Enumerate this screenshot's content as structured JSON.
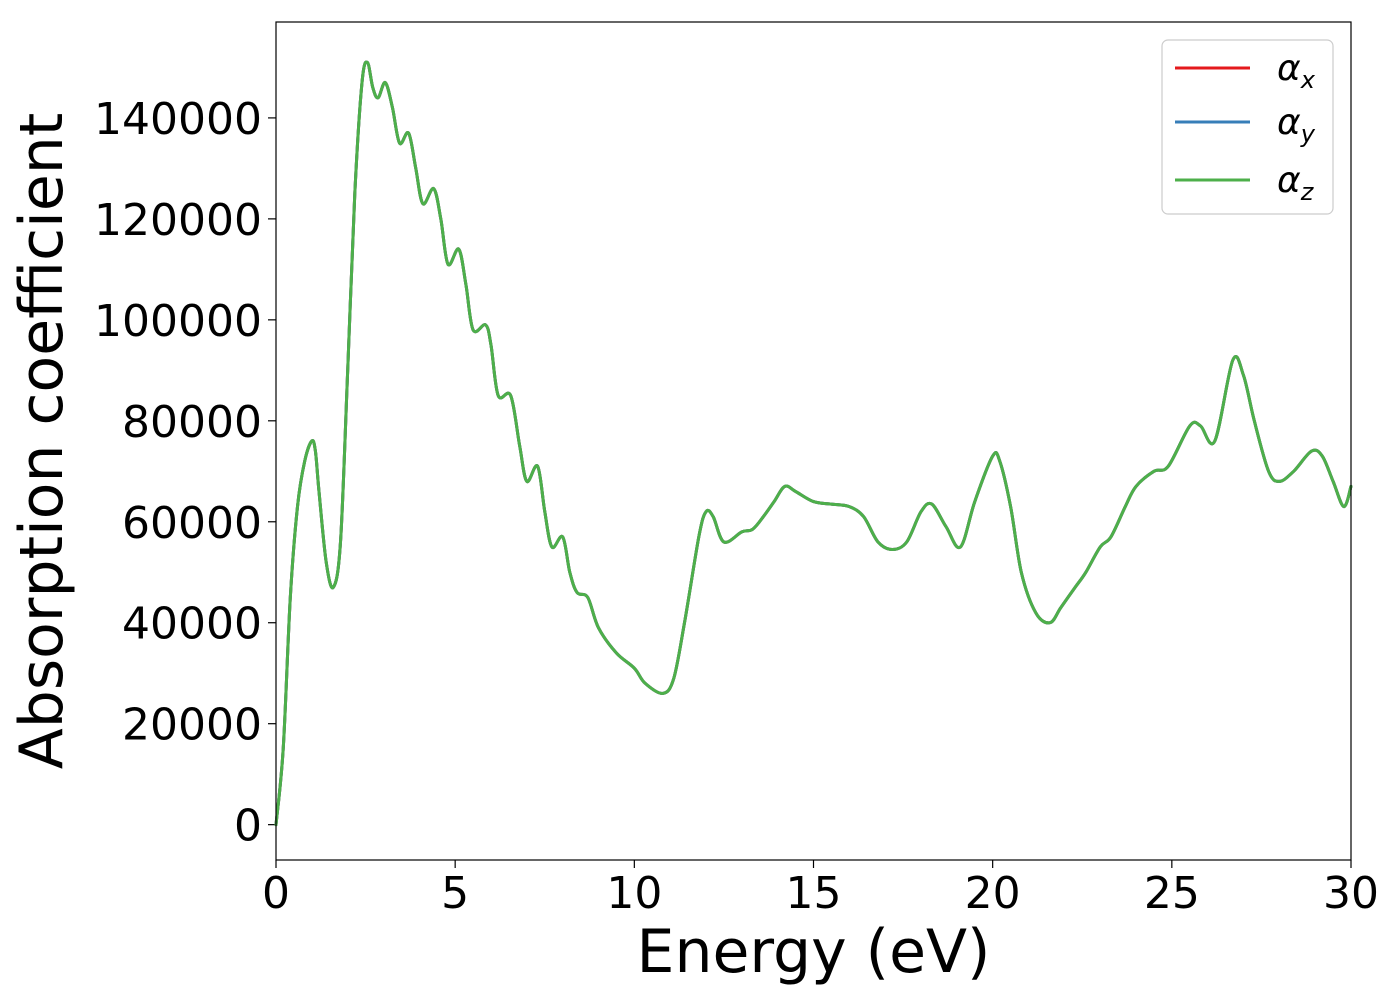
{
  "chart_data": {
    "type": "line",
    "title": "",
    "xlabel": "Energy (eV)",
    "ylabel": "Absorption coefficient",
    "xlim": [
      0,
      30
    ],
    "ylim": [
      -7000,
      159000
    ],
    "x_ticks": [
      0,
      5,
      10,
      15,
      20,
      25,
      30
    ],
    "y_ticks": [
      0,
      20000,
      40000,
      60000,
      80000,
      100000,
      120000,
      140000
    ],
    "grid": false,
    "legend": {
      "position": "top-right",
      "entries": [
        {
          "symbol": "α",
          "sub": "x"
        },
        {
          "symbol": "α",
          "sub": "y"
        },
        {
          "symbol": "α",
          "sub": "z"
        }
      ]
    },
    "series": [
      {
        "name": "αx",
        "color": "#e41a1c",
        "x": [
          0,
          0.2,
          0.4,
          0.6,
          0.8,
          1.0,
          1.1,
          1.2,
          1.4,
          1.6,
          1.8,
          2.0,
          2.2,
          2.4,
          2.55,
          2.7,
          2.85,
          3.05,
          3.25,
          3.45,
          3.7,
          3.9,
          4.1,
          4.4,
          4.6,
          4.8,
          5.1,
          5.3,
          5.5,
          5.85,
          6.0,
          6.2,
          6.55,
          6.8,
          7.0,
          7.3,
          7.5,
          7.7,
          8.0,
          8.2,
          8.4,
          8.7,
          9.0,
          9.5,
          10.0,
          10.3,
          10.8,
          11.1,
          11.4,
          11.8,
          12.0,
          12.2,
          12.5,
          13.0,
          13.3,
          13.6,
          13.9,
          14.2,
          14.5,
          15.0,
          15.5,
          16.0,
          16.4,
          16.8,
          17.2,
          17.6,
          18.0,
          18.3,
          18.7,
          19.1,
          19.5,
          20.0,
          20.2,
          20.5,
          20.8,
          21.2,
          21.6,
          21.9,
          22.3,
          22.6,
          23.0,
          23.3,
          23.7,
          24.0,
          24.5,
          24.9,
          25.5,
          25.8,
          26.2,
          26.7,
          27.0,
          27.3,
          27.7,
          28.0,
          28.4,
          28.9,
          29.2,
          29.5,
          29.8,
          30.0
        ],
        "y": [
          0,
          15000,
          45000,
          63000,
          72000,
          76000,
          74000,
          66000,
          52000,
          47000,
          56000,
          90000,
          125000,
          147000,
          151000,
          146000,
          144000,
          147000,
          142000,
          135000,
          137000,
          130000,
          123000,
          126000,
          120000,
          111000,
          114000,
          107000,
          98000,
          99000,
          95000,
          85000,
          85000,
          75000,
          68000,
          71000,
          62000,
          55000,
          57000,
          50000,
          46000,
          45000,
          39000,
          34000,
          31000,
          28000,
          26000,
          29000,
          40000,
          57000,
          62000,
          61000,
          56000,
          58000,
          58500,
          61000,
          64000,
          67000,
          66000,
          64000,
          63500,
          63000,
          61000,
          56000,
          54500,
          56000,
          62000,
          63500,
          59000,
          55000,
          64000,
          73000,
          72000,
          63000,
          50000,
          42000,
          40000,
          43000,
          47000,
          50000,
          55000,
          57000,
          63000,
          67000,
          70000,
          71000,
          79000,
          79000,
          76000,
          92000,
          89000,
          80000,
          70000,
          68000,
          70000,
          74000,
          73000,
          68000,
          63000,
          67000
        ]
      },
      {
        "name": "αy",
        "color": "#377eb8",
        "x": [
          0,
          0.2,
          0.4,
          0.6,
          0.8,
          1.0,
          1.1,
          1.2,
          1.4,
          1.6,
          1.8,
          2.0,
          2.2,
          2.4,
          2.55,
          2.7,
          2.85,
          3.05,
          3.25,
          3.45,
          3.7,
          3.9,
          4.1,
          4.4,
          4.6,
          4.8,
          5.1,
          5.3,
          5.5,
          5.85,
          6.0,
          6.2,
          6.55,
          6.8,
          7.0,
          7.3,
          7.5,
          7.7,
          8.0,
          8.2,
          8.4,
          8.7,
          9.0,
          9.5,
          10.0,
          10.3,
          10.8,
          11.1,
          11.4,
          11.8,
          12.0,
          12.2,
          12.5,
          13.0,
          13.3,
          13.6,
          13.9,
          14.2,
          14.5,
          15.0,
          15.5,
          16.0,
          16.4,
          16.8,
          17.2,
          17.6,
          18.0,
          18.3,
          18.7,
          19.1,
          19.5,
          20.0,
          20.2,
          20.5,
          20.8,
          21.2,
          21.6,
          21.9,
          22.3,
          22.6,
          23.0,
          23.3,
          23.7,
          24.0,
          24.5,
          24.9,
          25.5,
          25.8,
          26.2,
          26.7,
          27.0,
          27.3,
          27.7,
          28.0,
          28.4,
          28.9,
          29.2,
          29.5,
          29.8,
          30.0
        ],
        "y": [
          0,
          15000,
          45000,
          63000,
          72000,
          76000,
          74000,
          66000,
          52000,
          47000,
          56000,
          90000,
          125000,
          147000,
          151000,
          146000,
          144000,
          147000,
          142000,
          135000,
          137000,
          130000,
          123000,
          126000,
          120000,
          111000,
          114000,
          107000,
          98000,
          99000,
          95000,
          85000,
          85000,
          75000,
          68000,
          71000,
          62000,
          55000,
          57000,
          50000,
          46000,
          45000,
          39000,
          34000,
          31000,
          28000,
          26000,
          29000,
          40000,
          57000,
          62000,
          61000,
          56000,
          58000,
          58500,
          61000,
          64000,
          67000,
          66000,
          64000,
          63500,
          63000,
          61000,
          56000,
          54500,
          56000,
          62000,
          63500,
          59000,
          55000,
          64000,
          73000,
          72000,
          63000,
          50000,
          42000,
          40000,
          43000,
          47000,
          50000,
          55000,
          57000,
          63000,
          67000,
          70000,
          71000,
          79000,
          79000,
          76000,
          92000,
          89000,
          80000,
          70000,
          68000,
          70000,
          74000,
          73000,
          68000,
          63000,
          67000
        ]
      },
      {
        "name": "αz",
        "color": "#4daf4a",
        "x": [
          0,
          0.2,
          0.4,
          0.6,
          0.8,
          1.0,
          1.1,
          1.2,
          1.4,
          1.6,
          1.8,
          2.0,
          2.2,
          2.4,
          2.55,
          2.7,
          2.85,
          3.05,
          3.25,
          3.45,
          3.7,
          3.9,
          4.1,
          4.4,
          4.6,
          4.8,
          5.1,
          5.3,
          5.5,
          5.85,
          6.0,
          6.2,
          6.55,
          6.8,
          7.0,
          7.3,
          7.5,
          7.7,
          8.0,
          8.2,
          8.4,
          8.7,
          9.0,
          9.5,
          10.0,
          10.3,
          10.8,
          11.1,
          11.4,
          11.8,
          12.0,
          12.2,
          12.5,
          13.0,
          13.3,
          13.6,
          13.9,
          14.2,
          14.5,
          15.0,
          15.5,
          16.0,
          16.4,
          16.8,
          17.2,
          17.6,
          18.0,
          18.3,
          18.7,
          19.1,
          19.5,
          20.0,
          20.2,
          20.5,
          20.8,
          21.2,
          21.6,
          21.9,
          22.3,
          22.6,
          23.0,
          23.3,
          23.7,
          24.0,
          24.5,
          24.9,
          25.5,
          25.8,
          26.2,
          26.7,
          27.0,
          27.3,
          27.7,
          28.0,
          28.4,
          28.9,
          29.2,
          29.5,
          29.8,
          30.0
        ],
        "y": [
          0,
          15000,
          45000,
          63000,
          72000,
          76000,
          74000,
          66000,
          52000,
          47000,
          56000,
          90000,
          125000,
          147000,
          151000,
          146000,
          144000,
          147000,
          142000,
          135000,
          137000,
          130000,
          123000,
          126000,
          120000,
          111000,
          114000,
          107000,
          98000,
          99000,
          95000,
          85000,
          85000,
          75000,
          68000,
          71000,
          62000,
          55000,
          57000,
          50000,
          46000,
          45000,
          39000,
          34000,
          31000,
          28000,
          26000,
          29000,
          40000,
          57000,
          62000,
          61000,
          56000,
          58000,
          58500,
          61000,
          64000,
          67000,
          66000,
          64000,
          63500,
          63000,
          61000,
          56000,
          54500,
          56000,
          62000,
          63500,
          59000,
          55000,
          64000,
          73000,
          72000,
          63000,
          50000,
          42000,
          40000,
          43000,
          47000,
          50000,
          55000,
          57000,
          63000,
          67000,
          70000,
          71000,
          79000,
          79000,
          76000,
          92000,
          89000,
          80000,
          70000,
          68000,
          70000,
          74000,
          73000,
          68000,
          63000,
          67000
        ]
      }
    ]
  }
}
